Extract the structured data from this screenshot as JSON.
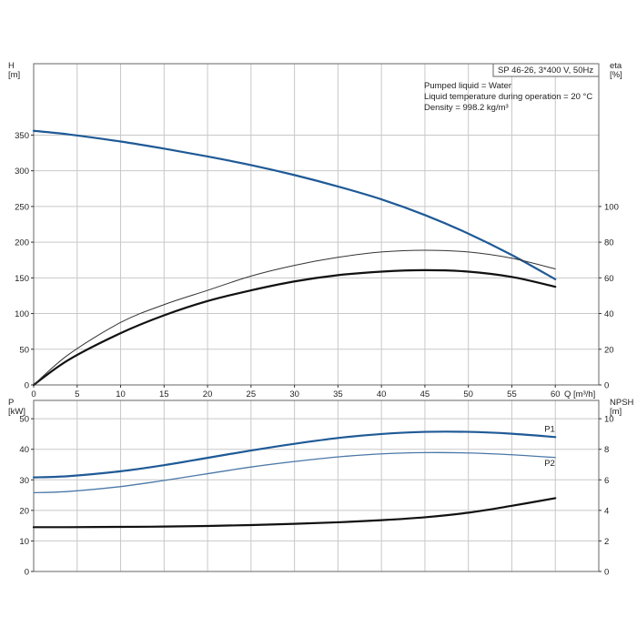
{
  "chart_data": [
    {
      "type": "line",
      "title": "SP 46-26, 3*400 V, 50Hz",
      "annotations": [
        "Pumped liquid = Water",
        "Liquid temperature during operation = 20 °C",
        "Density = 998.2 kg/m³"
      ],
      "xlabel": "Q [m³/h]",
      "xlim": [
        0,
        65
      ],
      "xticks": [
        0,
        5,
        10,
        15,
        20,
        25,
        30,
        35,
        40,
        45,
        50,
        55,
        60
      ],
      "ylabel_left": "H\n[m]",
      "ylim_left": [
        0,
        450
      ],
      "yticks_left": [
        0,
        50,
        100,
        150,
        200,
        250,
        300,
        350
      ],
      "ylabel_right": "eta\n[%]",
      "ylim_right": [
        0,
        180
      ],
      "yticks_right": [
        0,
        20,
        40,
        60,
        80,
        100
      ],
      "grid": true,
      "series": [
        {
          "name": "",
          "axis": "left",
          "color": "#1f5a96",
          "x": [
            0,
            4,
            10,
            15,
            20,
            25,
            30,
            35,
            40,
            45,
            50,
            55,
            60
          ],
          "y": [
            356,
            351,
            341,
            331,
            320,
            308,
            294,
            278,
            260,
            238,
            212,
            182,
            148
          ]
        },
        {
          "name": "",
          "axis": "right",
          "color": "#111111",
          "x": [
            0,
            4,
            10,
            15,
            20,
            25,
            30,
            35,
            40,
            45,
            50,
            55,
            60
          ],
          "y": [
            0,
            14,
            29,
            39,
            47,
            53,
            58,
            61.5,
            63.5,
            64.3,
            63.5,
            60.5,
            55
          ]
        },
        {
          "name": "",
          "axis": "right",
          "color": "#333333",
          "x": [
            0,
            4,
            10,
            15,
            20,
            25,
            30,
            35,
            40,
            45,
            50,
            55,
            60
          ],
          "y": [
            0,
            17,
            35,
            45,
            53,
            61,
            67,
            71.5,
            74.5,
            75.5,
            74.5,
            71,
            65
          ]
        }
      ]
    },
    {
      "type": "line",
      "xlim": [
        0,
        65
      ],
      "ylabel_left": "P\n[kW]",
      "ylim_left": [
        0,
        56
      ],
      "yticks_left": [
        0,
        10,
        20,
        30,
        40,
        50
      ],
      "ylabel_right": "NPSH\n[m]",
      "ylim_right": [
        0,
        11.2
      ],
      "yticks_right": [
        0,
        2,
        4,
        6,
        8,
        10
      ],
      "grid": true,
      "series": [
        {
          "name": "P1",
          "axis": "left",
          "color": "#1f5a96",
          "x": [
            0,
            4,
            10,
            15,
            20,
            25,
            30,
            35,
            40,
            45,
            50,
            55,
            60
          ],
          "y": [
            30.8,
            31.2,
            32.8,
            34.8,
            37.2,
            39.6,
            41.8,
            43.7,
            45.0,
            45.7,
            45.7,
            45.1,
            44.0
          ]
        },
        {
          "name": "P2",
          "axis": "left",
          "color": "#4a78a8",
          "x": [
            0,
            4,
            10,
            15,
            20,
            25,
            30,
            35,
            40,
            45,
            50,
            55,
            60
          ],
          "y": [
            25.8,
            26.2,
            27.8,
            29.8,
            32.0,
            34.2,
            36.0,
            37.5,
            38.5,
            38.9,
            38.8,
            38.2,
            37.3
          ]
        },
        {
          "name": "",
          "axis": "right",
          "color": "#111111",
          "x": [
            0,
            4,
            10,
            15,
            20,
            25,
            30,
            35,
            40,
            45,
            50,
            55,
            60
          ],
          "y": [
            2.9,
            2.9,
            2.92,
            2.94,
            2.98,
            3.04,
            3.12,
            3.22,
            3.36,
            3.55,
            3.85,
            4.3,
            4.8
          ]
        }
      ]
    }
  ]
}
